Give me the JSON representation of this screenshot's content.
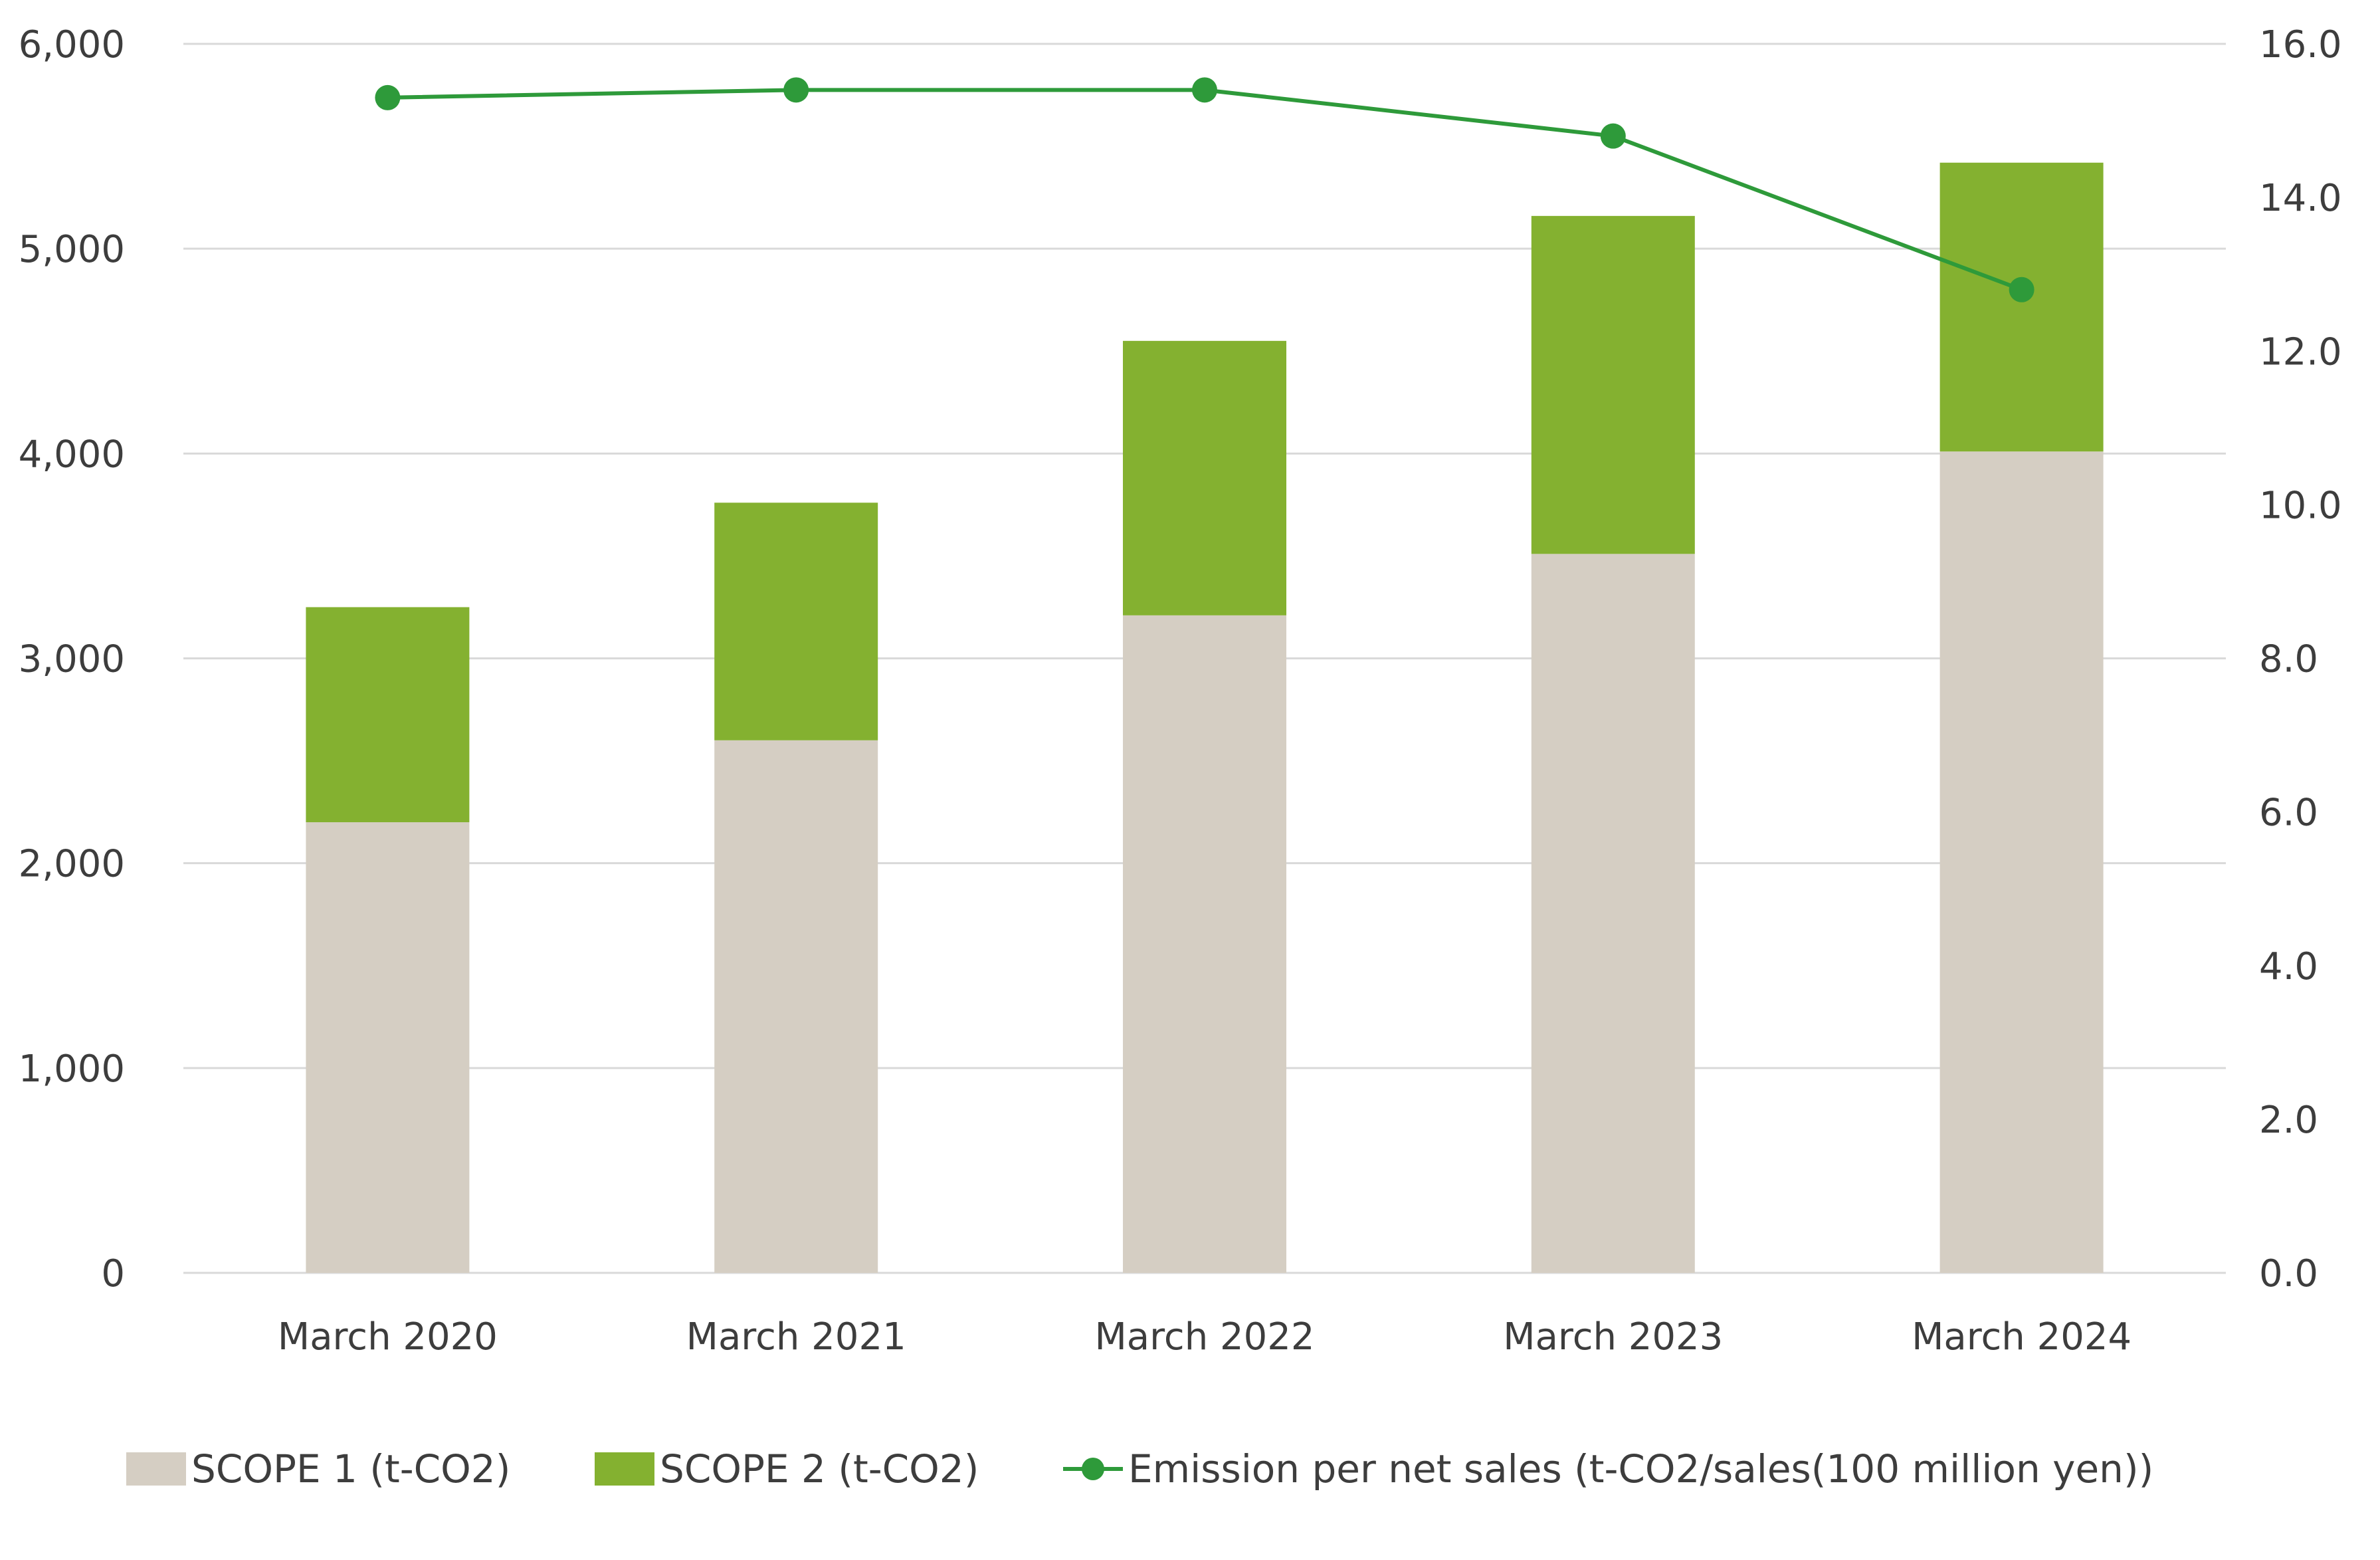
{
  "chart_data": {
    "type": "bar",
    "stacked": true,
    "categories": [
      "March 2020",
      "March 2021",
      "March 2022",
      "March 2023",
      "March 2024"
    ],
    "series": [
      {
        "name": "SCOPE 1 (t-CO2)",
        "type": "bar",
        "axis": "left",
        "color": "#d5cec3",
        "values": [
          2200,
          2600,
          3210,
          3510,
          4010
        ]
      },
      {
        "name": "SCOPE 2 (t-CO2)",
        "type": "bar",
        "axis": "left",
        "color": "#84b130",
        "values": [
          1050,
          1160,
          1340,
          1650,
          1410
        ]
      },
      {
        "name": "Emission per net sales (t-CO2/sales(100 million yen))",
        "type": "line",
        "axis": "right",
        "color": "#2e9a3a",
        "values": [
          15.3,
          15.4,
          15.4,
          14.8,
          12.8
        ]
      }
    ],
    "y_left": {
      "range": [
        0,
        6000
      ],
      "ticks": [
        0,
        1000,
        2000,
        3000,
        4000,
        5000,
        6000
      ],
      "tick_labels": [
        "0",
        "1,000",
        "2,000",
        "3,000",
        "4,000",
        "5,000",
        "6,000"
      ]
    },
    "y_right": {
      "range": [
        0,
        16
      ],
      "ticks": [
        0,
        2,
        4,
        6,
        8,
        10,
        12,
        14,
        16
      ],
      "tick_labels": [
        "0.0",
        "2.0",
        "4.0",
        "6.0",
        "8.0",
        "10.0",
        "12.0",
        "14.0",
        "16.0"
      ]
    },
    "title": "",
    "xlabel": "",
    "ylabel": "",
    "grid": true,
    "legend_position": "bottom"
  }
}
